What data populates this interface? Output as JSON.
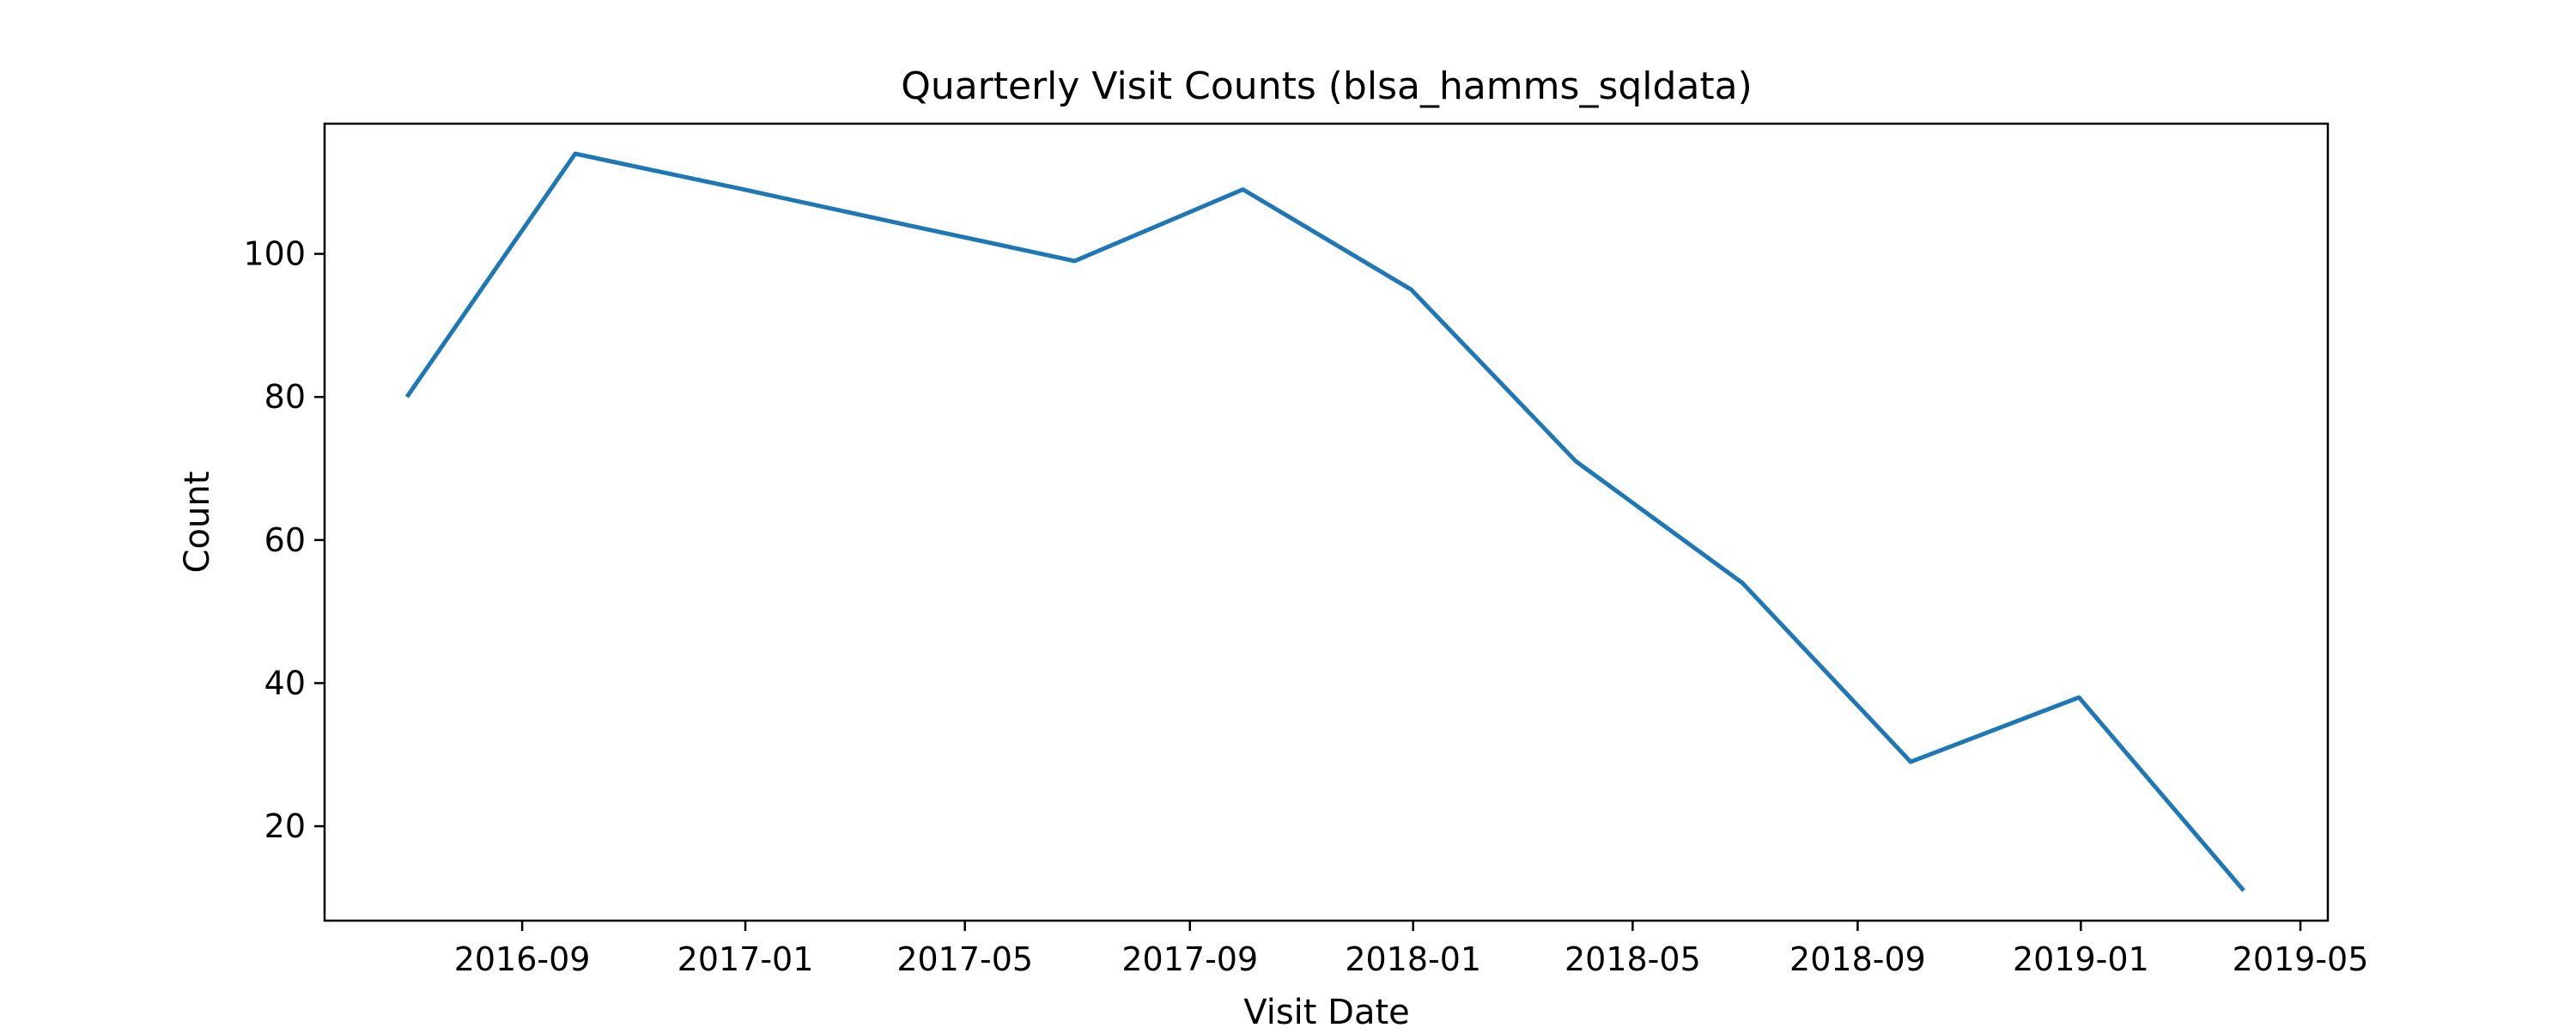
{
  "chart_data": {
    "type": "line",
    "title": "Quarterly Visit Counts (blsa_hamms_sqldata)",
    "xlabel": "Visit Date",
    "ylabel": "Count",
    "x_axis_kind": "date",
    "xlim": [
      "2016-05-16",
      "2019-05-16"
    ],
    "ylim": [
      6.8,
      118.2
    ],
    "x_ticks": [
      "2016-09",
      "2017-01",
      "2017-05",
      "2017-09",
      "2018-01",
      "2018-05",
      "2018-09",
      "2019-01",
      "2019-05"
    ],
    "y_ticks": [
      20,
      40,
      60,
      80,
      100
    ],
    "grid": false,
    "legend": "none",
    "series": [
      {
        "color": "#1f77b4",
        "x": [
          "2016-06-30",
          "2016-09-30",
          "2016-12-31",
          "2017-03-31",
          "2017-06-30",
          "2017-09-30",
          "2017-12-31",
          "2018-03-31",
          "2018-06-30",
          "2018-09-30",
          "2018-12-31",
          "2019-03-31"
        ],
        "values": [
          80,
          114,
          109,
          104,
          99,
          109,
          95,
          71,
          54,
          29,
          38,
          11
        ]
      }
    ]
  }
}
